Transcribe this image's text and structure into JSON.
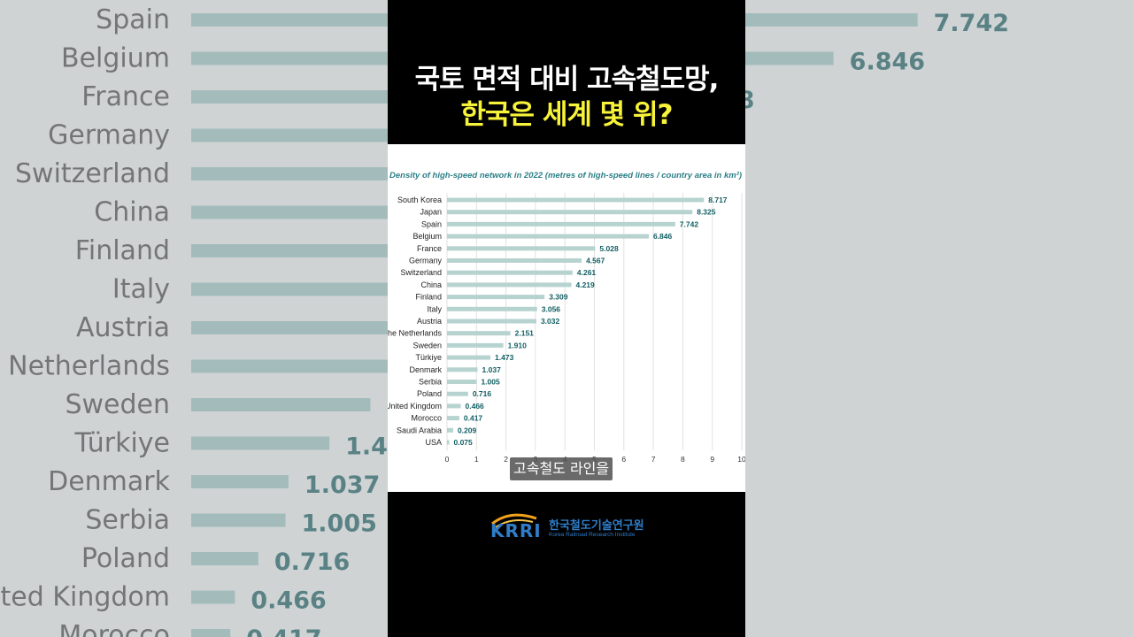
{
  "headline": {
    "line1": "국토 면적 대비 고속철도망,",
    "line2": "한국은 세계 몇 위?"
  },
  "caption": "고속철도 라인을",
  "logo": {
    "mark_text": "KRRI",
    "org_name_ko": "한국철도기술연구원",
    "org_name_en": "Korea Railroad Research Institute"
  },
  "colors": {
    "bar": "#b7d3d0",
    "value_label": "#115e63",
    "title": "#2a7f86",
    "headline_highlight": "#f7f33a"
  },
  "chart_data": {
    "type": "bar",
    "orientation": "horizontal",
    "title": "Density of high-speed network in 2022 (metres of high-speed lines / country area in km²)",
    "categories": [
      "South Korea",
      "Japan",
      "Spain",
      "Belgium",
      "France",
      "Germany",
      "Switzerland",
      "China",
      "Finland",
      "Italy",
      "Austria",
      "The Netherlands",
      "Sweden",
      "Türkiye",
      "Denmark",
      "Serbia",
      "Poland",
      "United Kingdom",
      "Morocco",
      "Saudi Arabia",
      "USA"
    ],
    "values": [
      8.717,
      8.325,
      7.742,
      6.846,
      5.028,
      4.567,
      4.261,
      4.219,
      3.309,
      3.056,
      3.032,
      2.151,
      1.91,
      1.473,
      1.037,
      1.005,
      0.716,
      0.466,
      0.417,
      0.209,
      0.075
    ],
    "value_labels": [
      "8.717",
      "8.325",
      "7.742",
      "6.846",
      "5.028",
      "4.567",
      "4.261",
      "4.219",
      "3.309",
      "3.056",
      "3.032",
      "2.151",
      "1.910",
      "1.473",
      "1.037",
      "1.005",
      "0.716",
      "0.466",
      "0.417",
      "0.209",
      "0.075"
    ],
    "xlim": [
      0,
      10
    ],
    "xticks": [
      "0",
      "1",
      "2",
      "3",
      "4",
      "5",
      "6",
      "7",
      "8",
      "9",
      "10"
    ],
    "grid": true,
    "legend": "none"
  }
}
